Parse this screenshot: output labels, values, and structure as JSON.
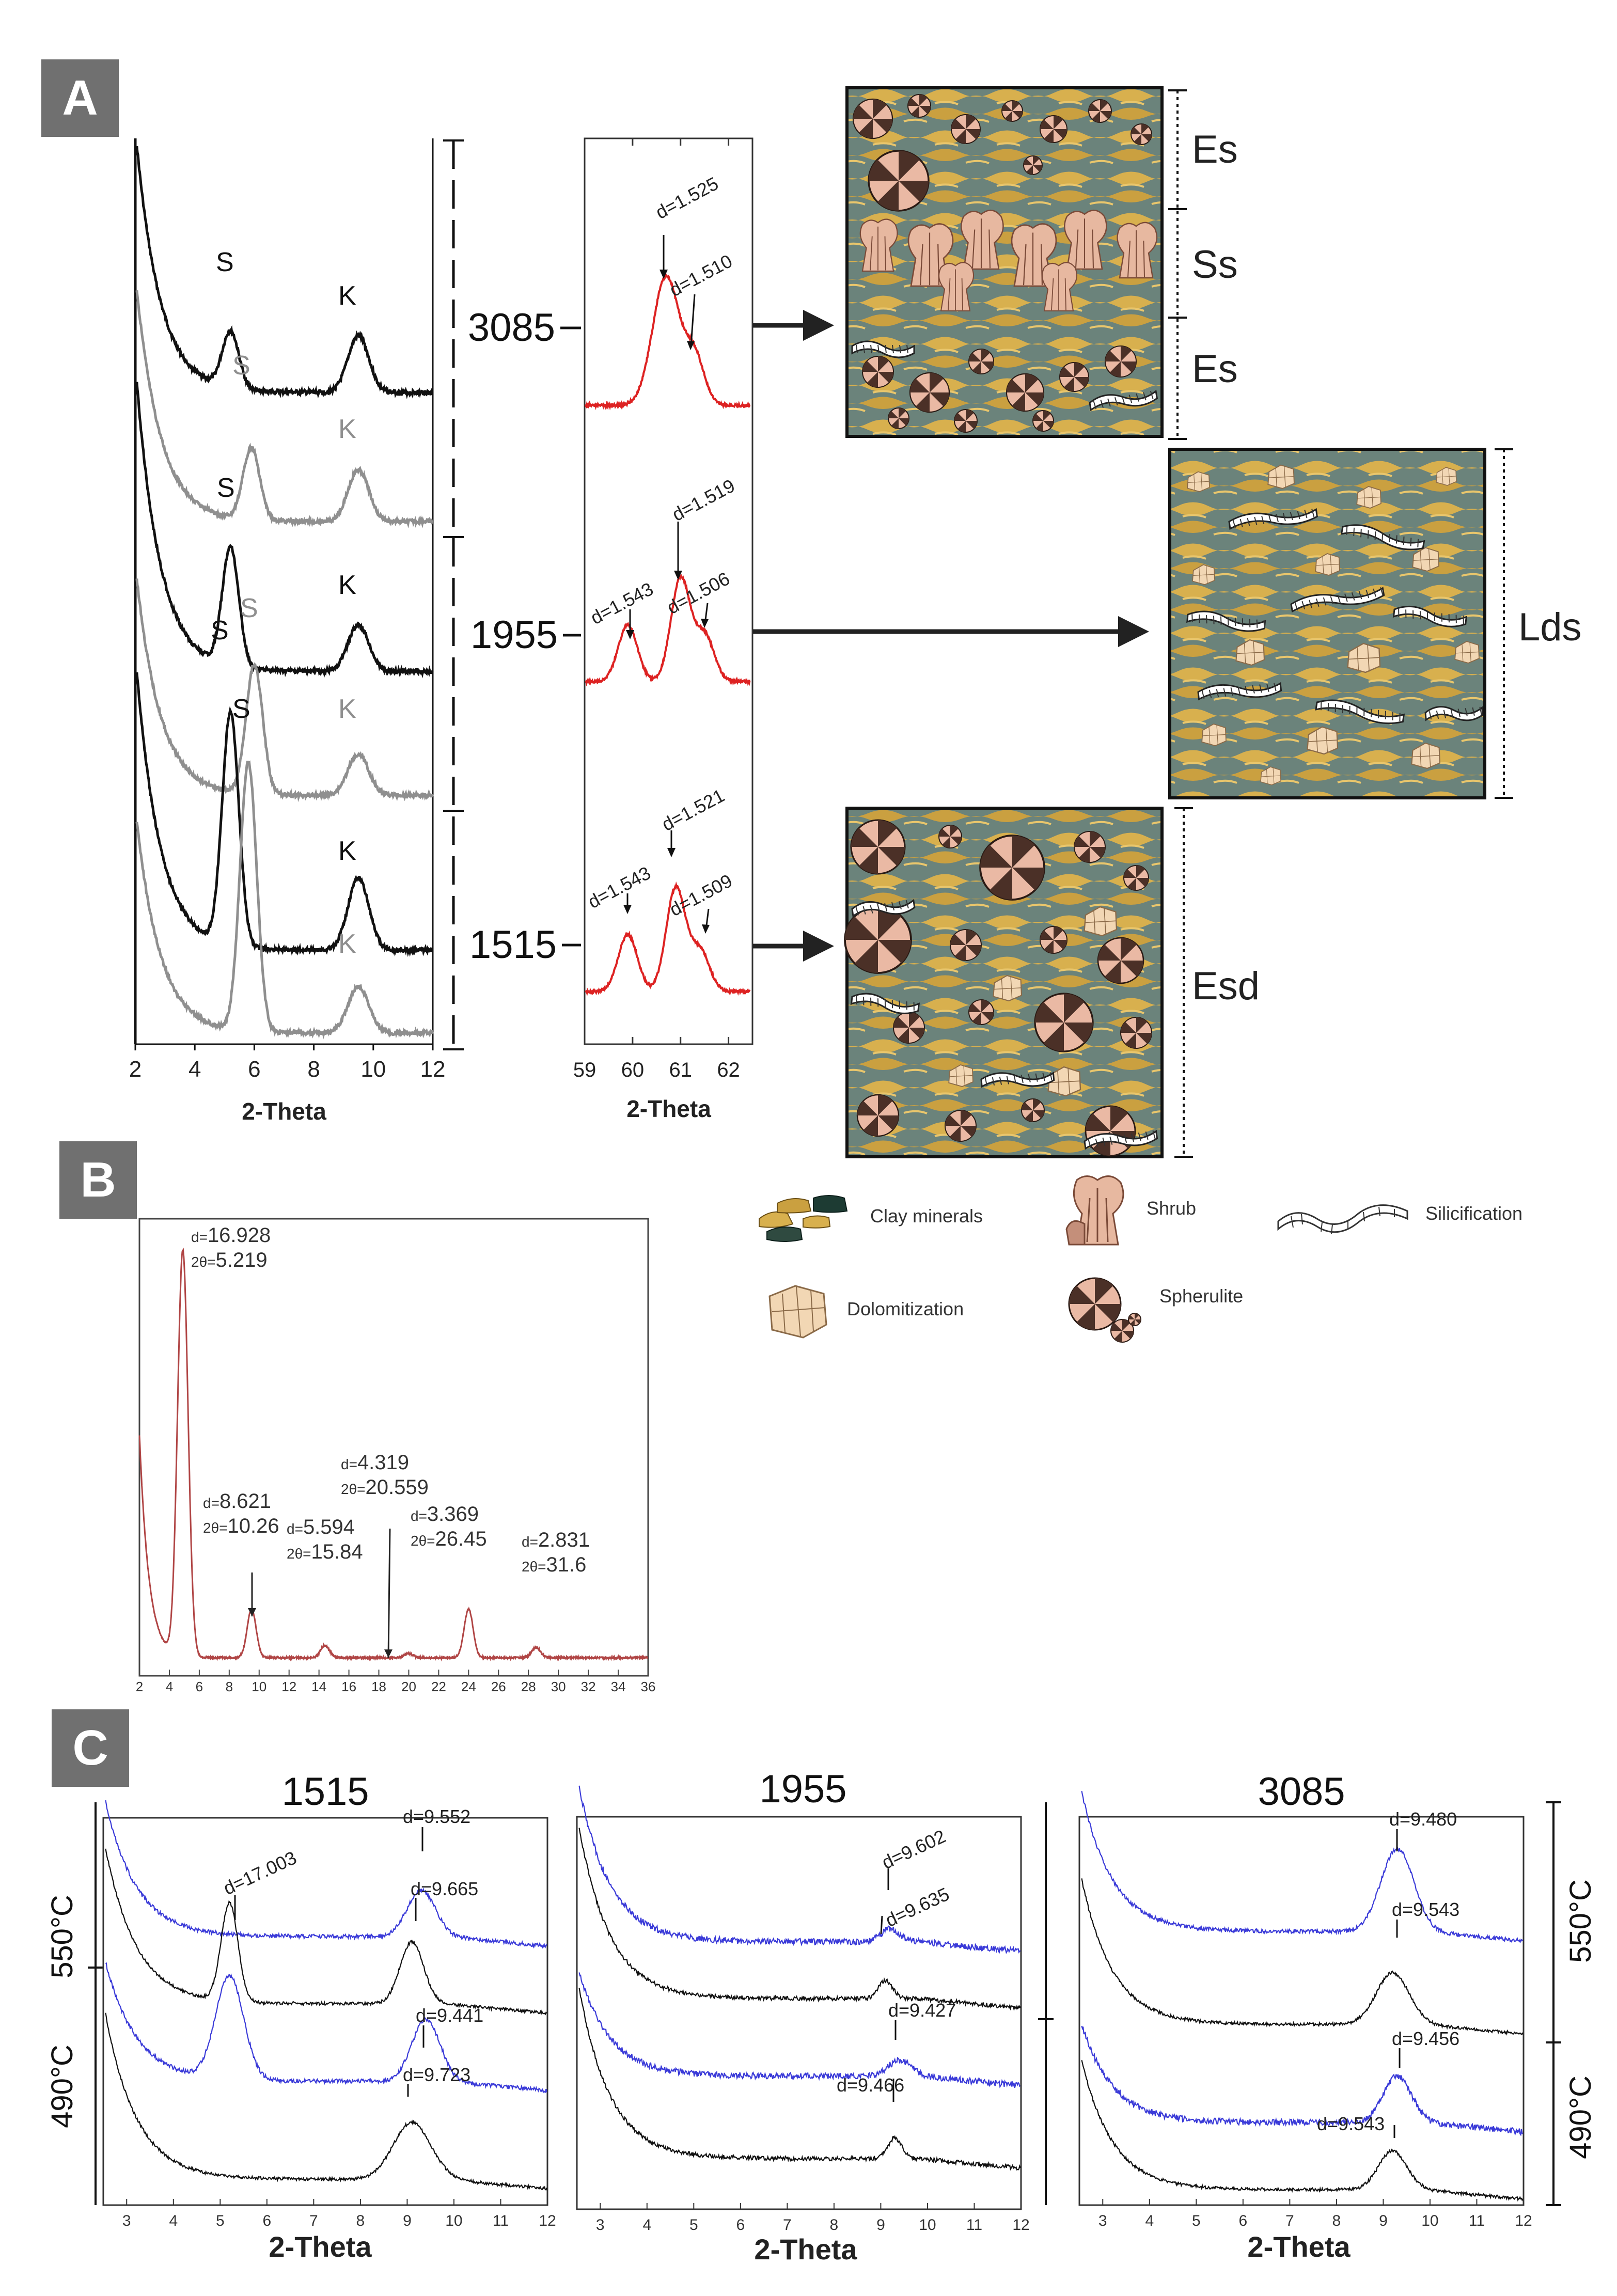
{
  "colors": {
    "red": "#dd2222",
    "brown": "#b04545",
    "blue": "#3a3ad8",
    "black": "#111111",
    "gray": "#8f8f8f",
    "badge": "#707070",
    "clay_gold": "#d8b04e",
    "clay_teal": "#5f7d76",
    "shrub_pink": "#e7b8a0",
    "sph_dark": "#4b3027",
    "sph_light": "#eab9a4",
    "dolomite": "#f2d7b4"
  },
  "panel_labels": {
    "a": "A",
    "b": "B",
    "c": "C"
  },
  "legend": {
    "clay": "Clay minerals",
    "shrub": "Shrub",
    "silicification": "Silicification",
    "dolomitization": "Dolomitization",
    "spherulite": "Spherulite"
  },
  "panel_a": {
    "depths": [
      "3085",
      "1955",
      "1515"
    ],
    "facies": {
      "es": "Es",
      "ss": "Ss",
      "lds": "Lds",
      "esd": "Esd"
    },
    "xrd_left": {
      "xlabel": "2-Theta",
      "ticks": [
        "2",
        "4",
        "6",
        "8",
        "10",
        "12"
      ],
      "peak_s": "S",
      "peak_k": "K"
    },
    "xrd_mid": {
      "xlabel": "2-Theta",
      "ticks": [
        "59",
        "60",
        "61",
        "62"
      ],
      "a1": "d=1.525",
      "a2": "d=1.510",
      "b1": "d=1.519",
      "b2": "d=1.543",
      "b3": "d=1.506",
      "c1": "d=1.521",
      "c2": "d=1.543",
      "c3": "d=1.509"
    }
  },
  "panel_b": {
    "labels": [
      {
        "d": "16.928",
        "t": "5.219"
      },
      {
        "d": "8.621",
        "t": "10.26"
      },
      {
        "d": "5.594",
        "t": "15.84"
      },
      {
        "d": "4.319",
        "t": "20.559"
      },
      {
        "d": "3.369",
        "t": "26.45"
      },
      {
        "d": "2.831",
        "t": "31.6"
      }
    ],
    "d_prefix": "d=",
    "t_prefix": "2θ="
  },
  "panel_c": {
    "titles": [
      "1515",
      "1955",
      "3085"
    ],
    "temps": {
      "t550": "550°C",
      "t490": "490°C"
    },
    "xlabel": "2-Theta",
    "ticks": [
      "3",
      "4",
      "5",
      "6",
      "7",
      "8",
      "9",
      "10",
      "11",
      "12"
    ],
    "d1515": [
      "d=17.003",
      "d=9.552",
      "d=9.665",
      "d=9.441",
      "d=9.723"
    ],
    "d1955": [
      "d=9.602",
      "d=9.635",
      "d=9.427",
      "d=9.466"
    ],
    "d3085": [
      "d=9.480",
      "d=9.543",
      "d=9.456",
      "d=9.543"
    ]
  },
  "chart_data": [
    {
      "type": "line",
      "panel": "A-left",
      "xlabel": "2-Theta",
      "xlim": [
        2,
        12
      ],
      "series": [
        {
          "name": "3085",
          "peaks": [
            {
              "label": "S",
              "x": 5.2
            },
            {
              "label": "K",
              "x": 9.5
            }
          ]
        },
        {
          "name": "3085",
          "peaks": [
            {
              "label": "S",
              "x": 5.9
            },
            {
              "label": "K",
              "x": 9.5
            }
          ]
        },
        {
          "name": "1955",
          "peaks": [
            {
              "label": "S",
              "x": 5.2
            },
            {
              "label": "K",
              "x": 9.5
            }
          ]
        },
        {
          "name": "1955",
          "peaks": [
            {
              "label": "S",
              "x": 6.0
            },
            {
              "label": "K",
              "x": 9.5
            }
          ]
        },
        {
          "name": "1515",
          "peaks": [
            {
              "label": "S",
              "x": 5.2
            },
            {
              "label": "K",
              "x": 9.5
            }
          ]
        },
        {
          "name": "1515",
          "peaks": [
            {
              "label": "S",
              "x": 5.8
            },
            {
              "label": "K",
              "x": 9.5
            }
          ]
        }
      ]
    },
    {
      "type": "line",
      "panel": "A-middle",
      "xlabel": "2-Theta",
      "xlim": [
        59,
        62.5
      ],
      "series": [
        {
          "name": "3085",
          "peaks": [
            {
              "x": 60.7,
              "d": "1.525"
            },
            {
              "x": 61.3,
              "d": "1.510"
            }
          ]
        },
        {
          "name": "1955",
          "peaks": [
            {
              "x": 59.9,
              "d": "1.543"
            },
            {
              "x": 61.0,
              "d": "1.519"
            },
            {
              "x": 61.5,
              "d": "1.506"
            }
          ]
        },
        {
          "name": "1515",
          "peaks": [
            {
              "x": 59.9,
              "d": "1.543"
            },
            {
              "x": 60.9,
              "d": "1.521"
            },
            {
              "x": 61.4,
              "d": "1.509"
            }
          ]
        }
      ]
    },
    {
      "type": "line",
      "panel": "B",
      "xlim": [
        2,
        36
      ],
      "xticks": [
        2,
        4,
        6,
        8,
        10,
        12,
        14,
        16,
        18,
        20,
        22,
        24,
        26,
        28,
        30,
        32,
        34,
        36
      ],
      "peaks": [
        {
          "two_theta": 5.219,
          "d": 16.928,
          "intensity": 1.0
        },
        {
          "two_theta": 10.26,
          "d": 8.621,
          "intensity": 0.12
        },
        {
          "two_theta": 15.84,
          "d": 5.594,
          "intensity": 0.03
        },
        {
          "two_theta": 20.559,
          "d": 4.319,
          "intensity": 0.01
        },
        {
          "two_theta": 26.45,
          "d": 3.369,
          "intensity": 0.12
        },
        {
          "two_theta": 31.6,
          "d": 2.831,
          "intensity": 0.025
        }
      ]
    },
    {
      "type": "line",
      "panel": "C",
      "xlabel": "2-Theta",
      "xlim": [
        2.5,
        12
      ],
      "subplots": [
        {
          "title": "1515",
          "peaks": [
            {
              "d": "17.003",
              "x": 5.2
            },
            {
              "d": "9.552",
              "x": 9.3
            },
            {
              "d": "9.665",
              "x": 9.1
            },
            {
              "d": "9.441",
              "x": 9.4
            },
            {
              "d": "9.723",
              "x": 9.1
            }
          ]
        },
        {
          "title": "1955",
          "peaks": [
            {
              "d": "9.602",
              "x": 9.2
            },
            {
              "d": "9.635",
              "x": 9.1
            },
            {
              "d": "9.427",
              "x": 9.4
            },
            {
              "d": "9.466",
              "x": 9.3
            }
          ]
        },
        {
          "title": "3085",
          "peaks": [
            {
              "d": "9.480",
              "x": 9.3
            },
            {
              "d": "9.543",
              "x": 9.2
            },
            {
              "d": "9.456",
              "x": 9.3
            },
            {
              "d": "9.543",
              "x": 9.2
            }
          ]
        }
      ]
    }
  ]
}
